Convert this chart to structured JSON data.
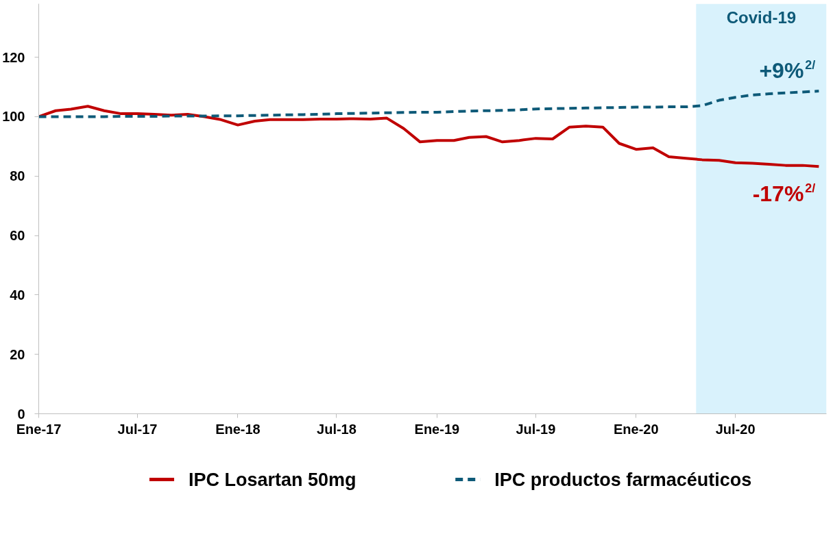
{
  "chart_data": {
    "type": "line",
    "x": [
      "2017-01",
      "2017-02",
      "2017-03",
      "2017-04",
      "2017-05",
      "2017-06",
      "2017-07",
      "2017-08",
      "2017-09",
      "2017-10",
      "2017-11",
      "2017-12",
      "2018-01",
      "2018-02",
      "2018-03",
      "2018-04",
      "2018-05",
      "2018-06",
      "2018-07",
      "2018-08",
      "2018-09",
      "2018-10",
      "2018-11",
      "2018-12",
      "2019-01",
      "2019-02",
      "2019-03",
      "2019-04",
      "2019-05",
      "2019-06",
      "2019-07",
      "2019-08",
      "2019-09",
      "2019-10",
      "2019-11",
      "2019-12",
      "2020-01",
      "2020-02",
      "2020-03",
      "2020-04",
      "2020-05",
      "2020-06",
      "2020-07",
      "2020-08",
      "2020-09",
      "2020-10",
      "2020-11",
      "2020-12"
    ],
    "xlim": [
      "2017-01",
      "2020-12-15"
    ],
    "xticks": [
      {
        "value": "2017-01",
        "label": "Ene-17"
      },
      {
        "value": "2017-07",
        "label": "Jul-17"
      },
      {
        "value": "2018-01",
        "label": "Ene-18"
      },
      {
        "value": "2018-07",
        "label": "Jul-18"
      },
      {
        "value": "2019-01",
        "label": "Ene-19"
      },
      {
        "value": "2019-07",
        "label": "Jul-19"
      },
      {
        "value": "2020-01",
        "label": "Ene-20"
      },
      {
        "value": "2020-07",
        "label": "Jul-20"
      }
    ],
    "ylim": [
      0,
      138
    ],
    "yticks": [
      0,
      20,
      40,
      60,
      80,
      100,
      120
    ],
    "series": [
      {
        "name": "IPC Losartan 50mg",
        "color": "#c00000",
        "line_style": "solid",
        "values": [
          100,
          102,
          102.5,
          103.5,
          102,
          101,
          101,
          100.8,
          100.5,
          100.8,
          100,
          99,
          97.2,
          98.5,
          99,
          99,
          99,
          99.2,
          99.2,
          99.3,
          99.2,
          99.5,
          96,
          91.5,
          92,
          92,
          93,
          93.3,
          91.5,
          92,
          92.7,
          92.5,
          96.5,
          96.8,
          96.5,
          91,
          89,
          89.5,
          86.5,
          86,
          85.5,
          85.3,
          84.5,
          84.3,
          84,
          83.6,
          83.6,
          83.2
        ]
      },
      {
        "name": "IPC productos farmacéuticos",
        "color": "#0e5a78",
        "line_style": "dashed",
        "values": [
          100,
          100,
          100,
          100,
          100,
          100.1,
          100.1,
          100.1,
          100.2,
          100.2,
          100.2,
          100.3,
          100.3,
          100.4,
          100.5,
          100.6,
          100.7,
          100.8,
          101,
          101.1,
          101.2,
          101.3,
          101.4,
          101.5,
          101.5,
          101.7,
          101.9,
          102,
          102.1,
          102.3,
          102.6,
          102.7,
          102.8,
          102.9,
          103,
          103.1,
          103.2,
          103.2,
          103.3,
          103.3,
          103.7,
          105.5,
          106.5,
          107.3,
          107.7,
          108,
          108.3,
          108.6
        ]
      }
    ],
    "bands": [
      {
        "axis": "x",
        "from": "2020-04-20",
        "to": "2020-12-15",
        "label": "Covid-19",
        "color": "#d9f2fc"
      }
    ],
    "annotations": [
      {
        "text": "-17%$^{2/}$",
        "x": "2020-12",
        "y": 83.2
      },
      {
        "text": "+9%$^{2/}$",
        "x": "2020-12",
        "y": 108.6
      }
    ],
    "grid": false,
    "legend": "bottom"
  }
}
